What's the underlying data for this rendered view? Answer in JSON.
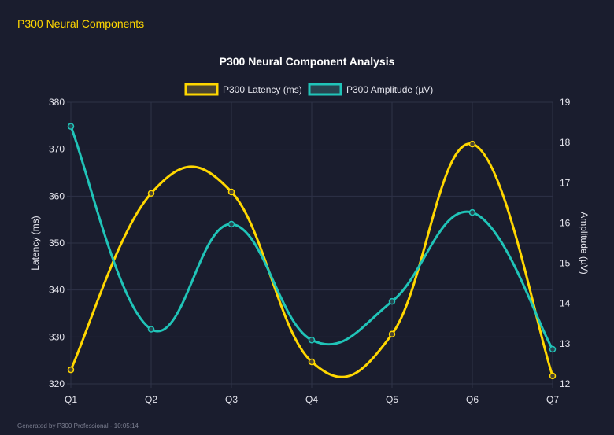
{
  "header": {
    "title": "P300 Neural Components"
  },
  "footer": {
    "text": "Generated by P300 Professional - 10:05:14"
  },
  "chart_data": {
    "type": "line",
    "title": "P300 Neural Component Analysis",
    "categories": [
      "Q1",
      "Q2",
      "Q3",
      "Q4",
      "Q5",
      "Q6",
      "Q7"
    ],
    "ylabel": "Latency (ms)",
    "y2label": "Amplitude (µV)",
    "ylim": [
      320,
      380
    ],
    "y2lim": [
      12,
      19
    ],
    "yticks": [
      320,
      330,
      340,
      350,
      360,
      370,
      380
    ],
    "y2ticks": [
      12,
      13,
      14,
      15,
      16,
      17,
      18,
      19
    ],
    "grid": true,
    "legend": "top",
    "series": [
      {
        "name": "P300 Latency (ms)",
        "axis": "left",
        "color": "#ffd700",
        "values": [
          323.0,
          360.6,
          360.9,
          324.7,
          330.6,
          371.1,
          321.7
        ]
      },
      {
        "name": "P300 Amplitude (µV)",
        "axis": "right",
        "color": "#20c4b8",
        "values": [
          18.4,
          13.36,
          15.97,
          13.09,
          14.05,
          16.26,
          12.86
        ]
      }
    ]
  }
}
